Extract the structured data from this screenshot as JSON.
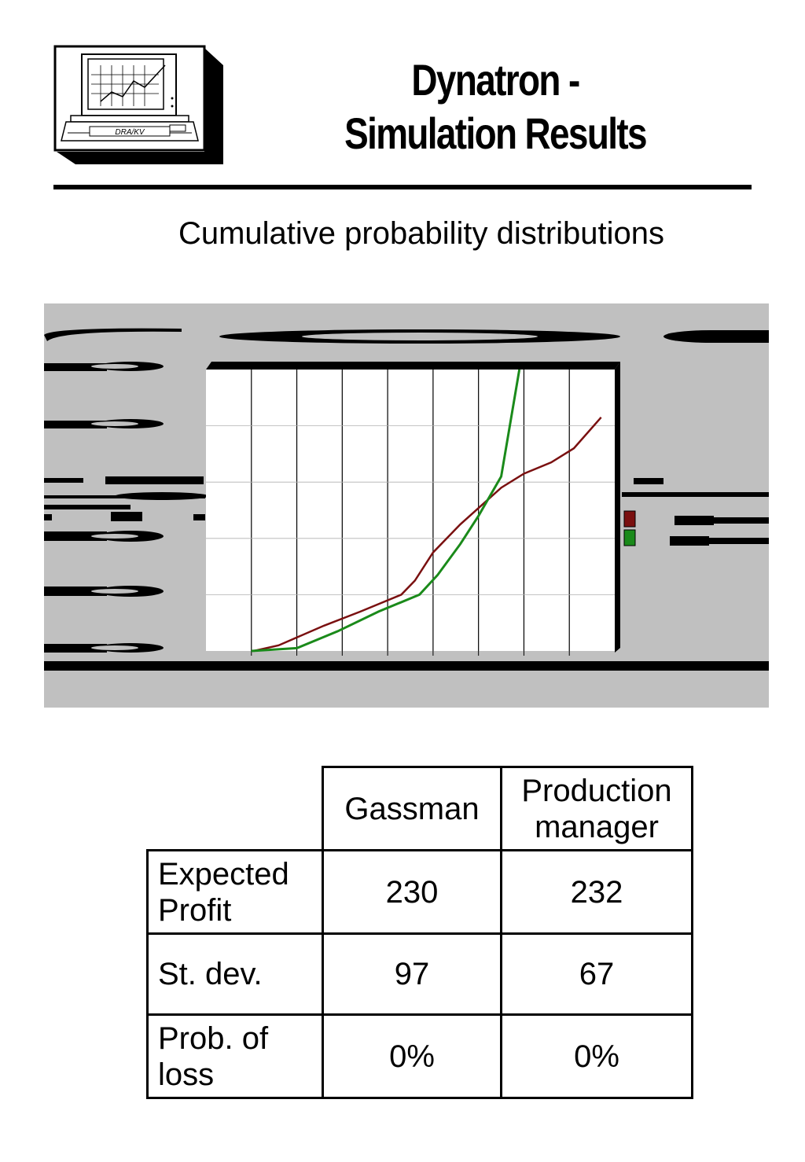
{
  "header": {
    "logo_label": "DRA/KV",
    "title_line1": "Dynatron -",
    "title_line2": "Simulation Results"
  },
  "subtitle": "Cumulative probability distributions",
  "chart_data": {
    "type": "line",
    "x_categories": 9,
    "ylim": [
      0,
      1
    ],
    "grid": "vertical and horizontal",
    "series": [
      {
        "color": "#7a1010",
        "points": [
          [
            1.05,
            0
          ],
          [
            1.6,
            0.02
          ],
          [
            2.6,
            0.09
          ],
          [
            3.4,
            0.14
          ],
          [
            4.3,
            0.2
          ],
          [
            4.6,
            0.25
          ],
          [
            5.0,
            0.35
          ],
          [
            5.6,
            0.45
          ],
          [
            6.5,
            0.58
          ],
          [
            7.0,
            0.63
          ],
          [
            7.6,
            0.67
          ],
          [
            8.1,
            0.72
          ],
          [
            8.7,
            0.83
          ]
        ]
      },
      {
        "color": "#1a8a1a",
        "points": [
          [
            1.0,
            0
          ],
          [
            2.0,
            0.01
          ],
          [
            2.9,
            0.07
          ],
          [
            3.8,
            0.14
          ],
          [
            4.7,
            0.2
          ],
          [
            5.1,
            0.27
          ],
          [
            5.6,
            0.38
          ],
          [
            6.0,
            0.48
          ],
          [
            6.5,
            0.62
          ],
          [
            6.9,
            1.0
          ]
        ]
      }
    ],
    "legend_swatches": [
      "#7a1010",
      "#1a8a1a"
    ]
  },
  "table": {
    "headers": [
      "Gassman",
      "Production manager"
    ],
    "rows": [
      {
        "label": "Expected Profit",
        "values": [
          "230",
          "232"
        ]
      },
      {
        "label": "St. dev.",
        "values": [
          "97",
          "67"
        ]
      },
      {
        "label": "Prob. of loss",
        "values": [
          "0%",
          "0%"
        ]
      }
    ]
  }
}
